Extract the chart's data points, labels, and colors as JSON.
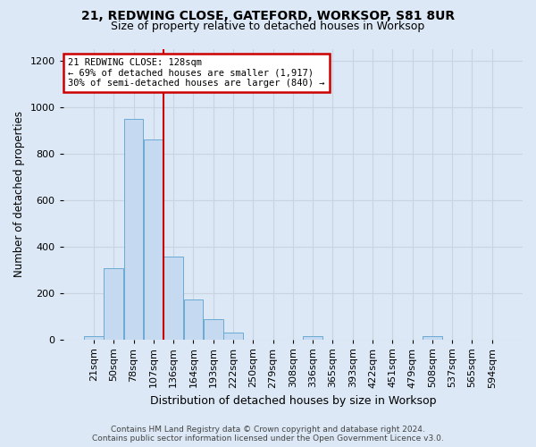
{
  "title1": "21, REDWING CLOSE, GATEFORD, WORKSOP, S81 8UR",
  "title2": "Size of property relative to detached houses in Worksop",
  "xlabel": "Distribution of detached houses by size in Worksop",
  "ylabel": "Number of detached properties",
  "footer": "Contains HM Land Registry data © Crown copyright and database right 2024.\nContains public sector information licensed under the Open Government Licence v3.0.",
  "annotation_title": "21 REDWING CLOSE: 128sqm",
  "annotation_line1": "← 69% of detached houses are smaller (1,917)",
  "annotation_line2": "30% of semi-detached houses are larger (840) →",
  "bar_labels": [
    "21sqm",
    "50sqm",
    "78sqm",
    "107sqm",
    "136sqm",
    "164sqm",
    "193sqm",
    "222sqm",
    "250sqm",
    "279sqm",
    "308sqm",
    "336sqm",
    "365sqm",
    "393sqm",
    "422sqm",
    "451sqm",
    "479sqm",
    "508sqm",
    "537sqm",
    "565sqm",
    "594sqm"
  ],
  "bar_values": [
    13,
    305,
    950,
    862,
    357,
    172,
    87,
    30,
    0,
    0,
    0,
    13,
    0,
    0,
    0,
    0,
    0,
    13,
    0,
    0,
    0
  ],
  "bar_color": "#c5d9f0",
  "bar_edge_color": "#6aaad4",
  "grid_color": "#c8d4e0",
  "marker_color": "#cc0000",
  "red_line_x": 3.5,
  "ylim": [
    0,
    1250
  ],
  "yticks": [
    0,
    200,
    400,
    600,
    800,
    1000,
    1200
  ],
  "bg_color": "#dce8f5"
}
